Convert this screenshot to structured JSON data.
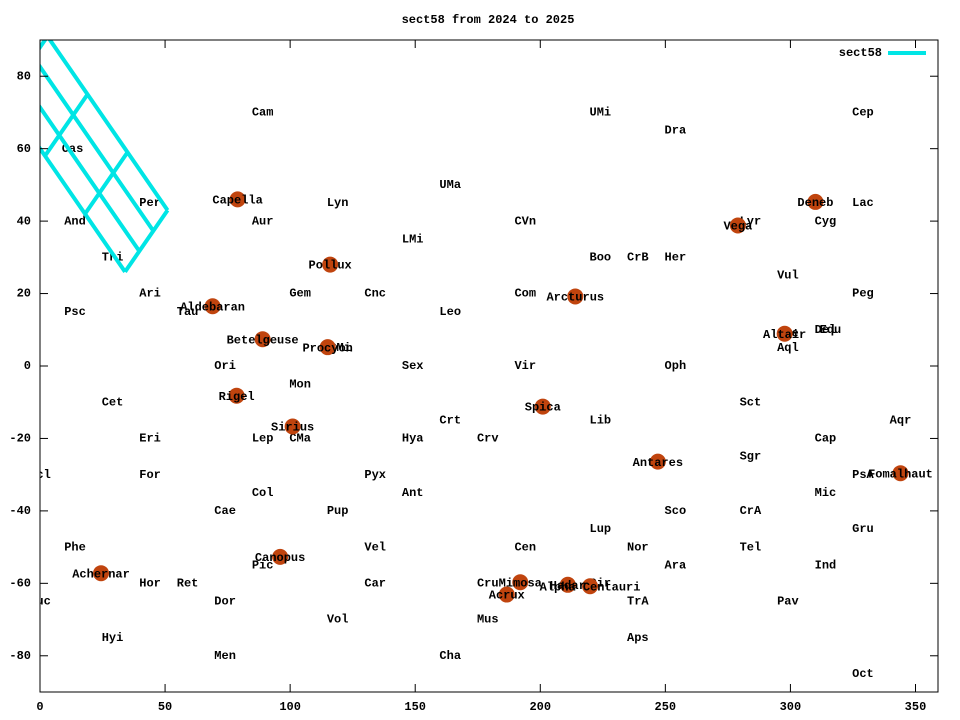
{
  "chart_data": {
    "type": "line",
    "title": "sect58 from 2024 to 2025",
    "xlim": [
      0,
      359
    ],
    "ylim": [
      -90,
      90
    ],
    "xticks": [
      0,
      50,
      100,
      150,
      200,
      250,
      300,
      350
    ],
    "yticks": [
      -80,
      -60,
      -40,
      -20,
      0,
      20,
      40,
      60,
      80
    ],
    "grid": false,
    "legend": "top-right",
    "series": [
      {
        "name": "sect58",
        "color": "#00e5e5",
        "x": [
          3,
          51,
          null,
          -2.7,
          45.3,
          null,
          -8.3,
          39.7,
          null,
          -14,
          34,
          null,
          3,
          -14,
          null,
          19,
          2,
          null,
          35,
          18,
          null,
          51,
          34
        ],
        "y": [
          91,
          43,
          null,
          85.3,
          37.3,
          null,
          79.7,
          31.7,
          null,
          74,
          26,
          null,
          91,
          74,
          null,
          75,
          58,
          null,
          59,
          42,
          null,
          43,
          26
        ]
      }
    ],
    "stars": {
      "color": "#c0440e",
      "names": [
        "Capella",
        "Pollux",
        "Aldebaran",
        "Betelgeuse",
        "Procyon",
        "Rigel",
        "Sirius",
        "Canopus",
        "Achernar",
        "Arcturus",
        "Spica",
        "Antares",
        "Mimosa",
        "Acrux",
        "Hadar",
        "Alpha Centauri",
        "Vega",
        "Deneb",
        "Altair",
        "Fomalhaut"
      ],
      "x": [
        79,
        116,
        69,
        89,
        115,
        78.6,
        101,
        96,
        24.4,
        214,
        201,
        247,
        192,
        186.6,
        211,
        219.9,
        279,
        310,
        297.7,
        344
      ],
      "y": [
        46,
        28,
        16.5,
        7.4,
        5.2,
        -8.2,
        -16.7,
        -52.7,
        -57.2,
        19.2,
        -11.2,
        -26.4,
        -59.7,
        -63.1,
        -60.4,
        -60.8,
        38.8,
        45.3,
        8.9,
        -29.6
      ]
    },
    "constellations": {
      "names": [
        "Cam",
        "UMi",
        "Dra",
        "Cep",
        "Cas",
        "UMa",
        "Per",
        "Lyn",
        "Lac",
        "And",
        "Aur",
        "CVn",
        "Lyr",
        "Cyg",
        "LMi",
        "Tri",
        "Boo",
        "CrB",
        "Her",
        "Vul",
        "Ari",
        "Gem",
        "Cnc",
        "Com",
        "Peg",
        "Psc",
        "Tau",
        "Leo",
        "Sge",
        "Del",
        "Equ",
        "CMi",
        "Aql",
        "Mon",
        "Ori",
        "Sex",
        "Vir",
        "Oph",
        "Cet",
        "Sct",
        "Crt",
        "Lib",
        "Aqr",
        "Eri",
        "Lep",
        "CMa",
        "Hya",
        "Crv",
        "Cap",
        "Sgr",
        "Scl",
        "For",
        "Pyx",
        "PsA",
        "Col",
        "Ant",
        "Mic",
        "Cae",
        "Pup",
        "Sco",
        "CrA",
        "Lup",
        "Gru",
        "Phe",
        "Vel",
        "Cen",
        "Nor",
        "Tel",
        "Pic",
        "Ara",
        "Ind",
        "Hor",
        "Ret",
        "Car",
        "Cru",
        "Cir",
        "Tuc",
        "Dor",
        "TrA",
        "Pav",
        "Vol",
        "Mus",
        "Hyi",
        "Aps",
        "Men",
        "Cha",
        "Oct"
      ],
      "x": [
        89,
        224,
        254,
        329,
        13,
        164,
        44,
        119,
        329,
        14,
        89,
        194,
        284,
        314,
        149,
        29,
        224,
        239,
        254,
        299,
        44,
        104,
        134,
        194,
        329,
        14,
        59,
        164,
        299,
        314,
        316,
        120,
        299,
        104,
        74,
        149,
        194,
        254,
        29,
        284,
        164,
        224,
        344,
        44,
        89,
        104,
        149,
        179,
        314,
        284,
        0,
        44,
        134,
        329,
        89,
        149,
        314,
        74,
        119,
        254,
        284,
        224,
        329,
        14,
        134,
        194,
        239,
        284,
        89,
        254,
        314,
        44,
        59,
        134,
        179,
        224,
        0,
        74,
        239,
        299,
        119,
        179,
        29,
        239,
        74,
        164,
        329
      ],
      "y": [
        70,
        70,
        65,
        70,
        60,
        50,
        45,
        45,
        45,
        40,
        40,
        40,
        40,
        40,
        35,
        30,
        30,
        30,
        30,
        25,
        20,
        20,
        20,
        20,
        20,
        15,
        15,
        15,
        9,
        10,
        10,
        5,
        5,
        -5,
        0,
        0,
        0,
        0,
        -10,
        -10,
        -15,
        -15,
        -15,
        -20,
        -20,
        -20,
        -20,
        -20,
        -20,
        -25,
        -30,
        -30,
        -30,
        -30,
        -35,
        -35,
        -35,
        -40,
        -40,
        -40,
        -40,
        -45,
        -45,
        -50,
        -50,
        -50,
        -50,
        -50,
        -55,
        -55,
        -55,
        -60,
        -60,
        -60,
        -60,
        -60,
        -65,
        -65,
        -65,
        -65,
        -70,
        -70,
        -75,
        -75,
        -80,
        -80,
        -85
      ]
    }
  }
}
